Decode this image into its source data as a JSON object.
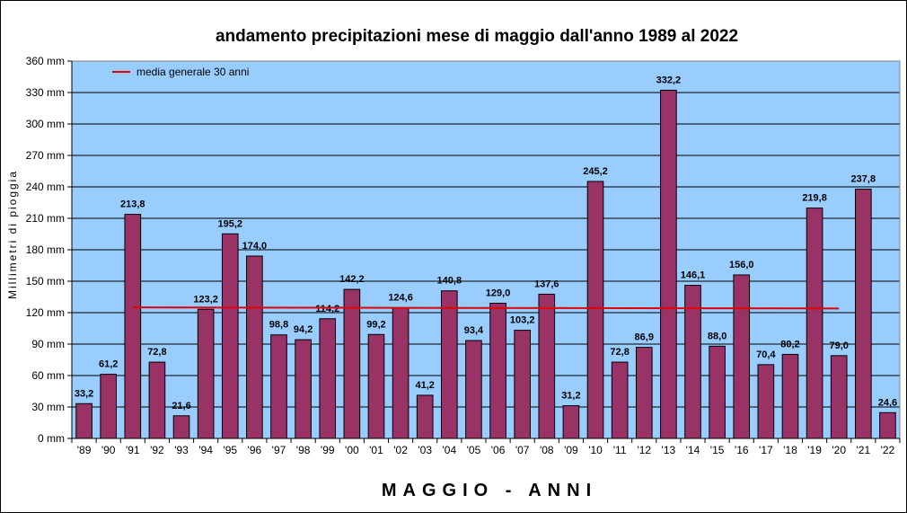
{
  "chart_data": {
    "type": "bar",
    "title": "andamento precipitazioni mese di maggio dall'anno 1989 al 2022",
    "ylabel": "Millimetri di pioggia",
    "xlabel": "MAGGIO - ANNI",
    "ylim": [
      0,
      360
    ],
    "ytick_step": 30,
    "ytick_labels": [
      "0 mm",
      "30 mm",
      "60 mm",
      "90 mm",
      "120 mm",
      "150 mm",
      "180 mm",
      "210 mm",
      "240 mm",
      "270 mm",
      "300 mm",
      "330 mm",
      "360 mm"
    ],
    "grid": true,
    "legend_position": "top-left",
    "categories": [
      "'89",
      "'90",
      "'91",
      "'92",
      "'93",
      "'94",
      "'95",
      "'96",
      "'97",
      "'98",
      "'99",
      "'00",
      "'01",
      "'02",
      "'03",
      "'04",
      "'05",
      "'06",
      "'07",
      "'08",
      "'09",
      "'10",
      "'11",
      "'12",
      "'13",
      "'14",
      "'15",
      "'16",
      "'17",
      "'18",
      "'19",
      "'20",
      "'21",
      "'22"
    ],
    "values": [
      33.2,
      61.2,
      213.8,
      72.8,
      21.6,
      123.2,
      195.2,
      174.0,
      98.8,
      94.2,
      114.2,
      142.2,
      99.2,
      124.6,
      41.2,
      140.8,
      93.4,
      129.0,
      103.2,
      137.6,
      31.2,
      245.2,
      72.8,
      86.9,
      332.2,
      146.1,
      88.0,
      156.0,
      70.4,
      80.2,
      219.8,
      79.0,
      237.8,
      24.6
    ],
    "value_labels": [
      "33,2",
      "61,2",
      "213,8",
      "72,8",
      "21,6",
      "123,2",
      "195,2",
      "174,0",
      "98,8",
      "94,2",
      "114,2",
      "142,2",
      "99,2",
      "124,6",
      "41,2",
      "140,8",
      "93,4",
      "129,0",
      "103,2",
      "137,6",
      "31,2",
      "245,2",
      "72,8",
      "86,9",
      "332,2",
      "146,1",
      "88,0",
      "156,0",
      "70,4",
      "80,2",
      "219,8",
      "79,0",
      "237,8",
      "24,6"
    ],
    "average_line": {
      "name": "media generale 30 anni",
      "start_category": "'91",
      "end_category": "'20",
      "start_value": 125.0,
      "end_value": 124.0
    },
    "colors": {
      "bar": "#993366",
      "bar_edge": "#000000",
      "plot_background": "#99ccff",
      "average_line": "#e00000",
      "grid": "#000000"
    }
  }
}
